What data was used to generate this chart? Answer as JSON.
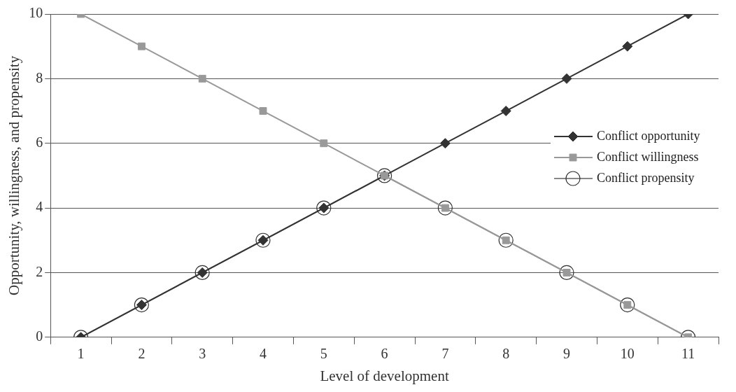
{
  "chart_data": {
    "type": "line",
    "xlabel": "Level of development",
    "ylabel": "Opportunity, willingness, and propensity",
    "categories": [
      "1",
      "2",
      "3",
      "4",
      "5",
      "6",
      "7",
      "8",
      "9",
      "10",
      "11"
    ],
    "series": [
      {
        "name": "Conflict opportunity",
        "color": "#333333",
        "marker": "diamond",
        "values": [
          0,
          1,
          2,
          3,
          4,
          5,
          6,
          7,
          8,
          9,
          10
        ]
      },
      {
        "name": "Conflict willingness",
        "color": "#999999",
        "marker": "square",
        "values": [
          10,
          9,
          8,
          7,
          6,
          5,
          4,
          3,
          2,
          1,
          0
        ]
      },
      {
        "name": "Conflict propensity",
        "color": "#888888",
        "marker": "circle",
        "values": [
          0,
          1,
          2,
          3,
          4,
          5,
          4,
          3,
          2,
          1,
          0
        ]
      }
    ],
    "ylim": [
      0,
      10
    ],
    "yticks": [
      0,
      2,
      4,
      6,
      8,
      10
    ],
    "grid": "y",
    "legend": "right",
    "line_style": "solid"
  }
}
